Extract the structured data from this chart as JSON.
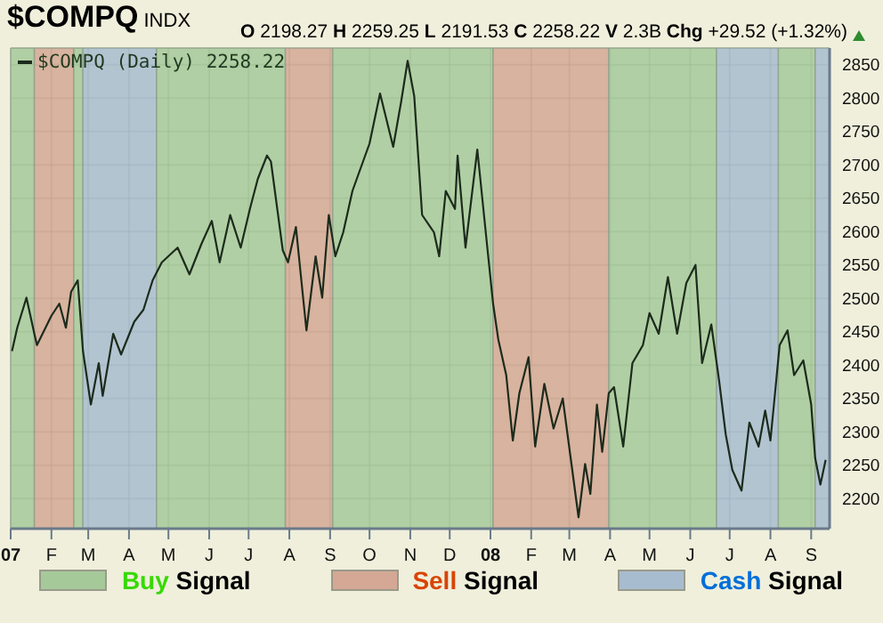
{
  "chart_data": {
    "type": "line",
    "title": "$COMPQ INDX",
    "annotations": [
      "O 2198.27 H 2259.25 L 2191.53 C 2258.22 V 2.3B Chg +29.52 (+1.32%)"
    ],
    "x": [
      "2007-01-02",
      "2007-01-06",
      "2007-01-13",
      "2007-01-19",
      "2007-01-21",
      "2007-02-01",
      "2007-02-07",
      "2007-02-12",
      "2007-02-16",
      "2007-02-21",
      "2007-02-25",
      "2007-03-03",
      "2007-03-09",
      "2007-03-12",
      "2007-03-20",
      "2007-03-26",
      "2007-04-05",
      "2007-04-12",
      "2007-04-19",
      "2007-04-26",
      "2007-05-08",
      "2007-05-17",
      "2007-05-26",
      "2007-06-03",
      "2007-06-09",
      "2007-06-17",
      "2007-06-25",
      "2007-07-02",
      "2007-07-08",
      "2007-07-15",
      "2007-07-18",
      "2007-07-27",
      "2007-07-31",
      "2007-08-06",
      "2007-08-14",
      "2007-08-21",
      "2007-08-26",
      "2007-08-31",
      "2007-09-05",
      "2007-09-11",
      "2007-09-18",
      "2007-10-01",
      "2007-10-09",
      "2007-10-19",
      "2007-10-25",
      "2007-10-30",
      "2007-11-04",
      "2007-11-10",
      "2007-11-19",
      "2007-11-23",
      "2007-11-28",
      "2007-12-05",
      "2007-12-07",
      "2007-12-13",
      "2007-12-22",
      "2007-12-28",
      "2008-01-03",
      "2008-01-07",
      "2008-01-13",
      "2008-01-18",
      "2008-01-23",
      "2008-01-30",
      "2008-02-04",
      "2008-02-11",
      "2008-02-18",
      "2008-02-25",
      "2008-03-02",
      "2008-03-08",
      "2008-03-13",
      "2008-03-17",
      "2008-03-22",
      "2008-03-26",
      "2008-03-31",
      "2008-04-04",
      "2008-04-11",
      "2008-04-18",
      "2008-04-26",
      "2008-05-01",
      "2008-05-08",
      "2008-05-15",
      "2008-05-22",
      "2008-05-29",
      "2008-06-05",
      "2008-06-10",
      "2008-06-17",
      "2008-06-23",
      "2008-06-28",
      "2008-07-03",
      "2008-07-10",
      "2008-07-16",
      "2008-07-23",
      "2008-07-28",
      "2008-08-01",
      "2008-08-08",
      "2008-08-14",
      "2008-08-19",
      "2008-08-26",
      "2008-09-01",
      "2008-09-04",
      "2008-09-08",
      "2008-09-12"
    ],
    "series": [
      {
        "name": "$COMPQ (Daily) 2258.22",
        "color": "#1c2b1c",
        "values": [
          2421,
          2456,
          2501,
          2447,
          2430,
          2474,
          2492,
          2456,
          2510,
          2527,
          2421,
          2341,
          2403,
          2354,
          2447,
          2416,
          2465,
          2483,
          2527,
          2554,
          2576,
          2536,
          2581,
          2616,
          2554,
          2625,
          2576,
          2634,
          2679,
          2714,
          2705,
          2572,
          2554,
          2607,
          2452,
          2563,
          2501,
          2625,
          2563,
          2599,
          2661,
          2732,
          2807,
          2727,
          2794,
          2856,
          2803,
          2625,
          2599,
          2563,
          2661,
          2634,
          2714,
          2576,
          2723,
          2607,
          2492,
          2438,
          2385,
          2287,
          2358,
          2412,
          2278,
          2372,
          2305,
          2350,
          2261,
          2172,
          2252,
          2207,
          2341,
          2270,
          2358,
          2367,
          2278,
          2403,
          2430,
          2478,
          2447,
          2532,
          2447,
          2523,
          2550,
          2403,
          2461,
          2376,
          2296,
          2243,
          2212,
          2314,
          2278,
          2332,
          2287,
          2430,
          2452,
          2385,
          2407,
          2341,
          2261,
          2221,
          2258
        ]
      }
    ],
    "xlim": [
      "2007-01-01",
      "2008-09-15"
    ],
    "xticks": [
      {
        "value": "2007-01-01",
        "label": "07"
      },
      {
        "value": "2007-02-01",
        "label": "F"
      },
      {
        "value": "2007-03-01",
        "label": "M"
      },
      {
        "value": "2007-04-01",
        "label": "A"
      },
      {
        "value": "2007-05-01",
        "label": "M"
      },
      {
        "value": "2007-06-01",
        "label": "J"
      },
      {
        "value": "2007-07-01",
        "label": "J"
      },
      {
        "value": "2007-08-01",
        "label": "A"
      },
      {
        "value": "2007-09-01",
        "label": "S"
      },
      {
        "value": "2007-10-01",
        "label": "O"
      },
      {
        "value": "2007-11-01",
        "label": "N"
      },
      {
        "value": "2007-12-01",
        "label": "D"
      },
      {
        "value": "2008-01-01",
        "label": "08"
      },
      {
        "value": "2008-02-01",
        "label": "F"
      },
      {
        "value": "2008-03-01",
        "label": "M"
      },
      {
        "value": "2008-04-01",
        "label": "A"
      },
      {
        "value": "2008-05-01",
        "label": "M"
      },
      {
        "value": "2008-06-01",
        "label": "J"
      },
      {
        "value": "2008-07-01",
        "label": "J"
      },
      {
        "value": "2008-08-01",
        "label": "A"
      },
      {
        "value": "2008-09-01",
        "label": "S"
      }
    ],
    "ylim": [
      2155,
      2875
    ],
    "yticks": [
      2200,
      2250,
      2300,
      2350,
      2400,
      2450,
      2500,
      2550,
      2600,
      2650,
      2700,
      2750,
      2800,
      2850
    ],
    "grid": true,
    "legend": "bottom",
    "bands": [
      {
        "axis": "x",
        "from": "2007-01-01",
        "to": "2007-01-19",
        "color": "#a6c99a",
        "label": "Buy Signal"
      },
      {
        "axis": "x",
        "from": "2007-01-19",
        "to": "2007-02-18",
        "color": "#d4a894",
        "label": "Sell Signal"
      },
      {
        "axis": "x",
        "from": "2007-02-18",
        "to": "2007-02-25",
        "color": "#a6c99a"
      },
      {
        "axis": "x",
        "from": "2007-02-25",
        "to": "2007-04-22",
        "color": "#a8bccf",
        "label": "Cash Signal"
      },
      {
        "axis": "x",
        "from": "2007-04-22",
        "to": "2007-07-29",
        "color": "#a6c99a"
      },
      {
        "axis": "x",
        "from": "2007-07-29",
        "to": "2007-09-03",
        "color": "#d4a894"
      },
      {
        "axis": "x",
        "from": "2007-09-03",
        "to": "2008-01-03",
        "color": "#a6c99a"
      },
      {
        "axis": "x",
        "from": "2008-01-03",
        "to": "2008-03-31",
        "color": "#d4a894"
      },
      {
        "axis": "x",
        "from": "2008-03-31",
        "to": "2008-06-21",
        "color": "#a6c99a"
      },
      {
        "axis": "x",
        "from": "2008-06-21",
        "to": "2008-08-07",
        "color": "#a8bccf"
      },
      {
        "axis": "x",
        "from": "2008-08-07",
        "to": "2008-09-04",
        "color": "#a6c99a"
      },
      {
        "axis": "x",
        "from": "2008-09-04",
        "to": "2008-09-15",
        "color": "#a8bccf"
      }
    ]
  }
}
